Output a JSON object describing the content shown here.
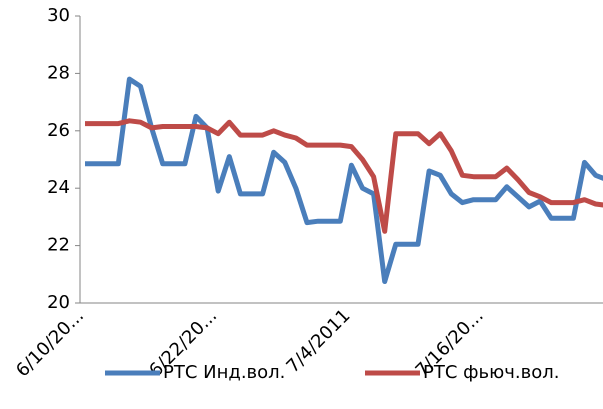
{
  "chart_data": {
    "type": "line",
    "categories": [
      "6/10/20...",
      null,
      null,
      null,
      null,
      null,
      null,
      null,
      null,
      null,
      null,
      null,
      "6/22/20...",
      null,
      null,
      null,
      null,
      null,
      null,
      null,
      null,
      null,
      null,
      null,
      "7/4/2011",
      null,
      null,
      null,
      null,
      null,
      null,
      null,
      null,
      null,
      null,
      null,
      "7/16/20...",
      null,
      null,
      null,
      null,
      null,
      null,
      null,
      null,
      null,
      null,
      null
    ],
    "series": [
      {
        "name": "РТС Инд.вол.",
        "color": "#4a7ebb",
        "values": [
          24.85,
          24.85,
          24.85,
          24.85,
          27.8,
          27.55,
          26.1,
          24.85,
          24.85,
          24.85,
          26.5,
          26.1,
          23.9,
          25.1,
          23.8,
          23.8,
          23.8,
          25.25,
          24.9,
          24.0,
          22.8,
          22.85,
          22.85,
          22.85,
          24.8,
          24.0,
          23.8,
          20.75,
          22.05,
          22.05,
          22.05,
          24.6,
          24.45,
          23.8,
          23.5,
          23.6,
          23.6,
          23.6,
          24.05,
          23.7,
          23.35,
          23.55,
          22.95,
          22.95,
          22.95,
          24.9,
          24.45,
          24.3
        ]
      },
      {
        "name": "РТС фьюч.вол.",
        "color": "#be4b48",
        "values": [
          26.25,
          26.25,
          26.25,
          26.25,
          26.35,
          26.3,
          26.1,
          26.15,
          26.15,
          26.15,
          26.15,
          26.1,
          25.9,
          26.3,
          25.85,
          25.85,
          25.85,
          26.0,
          25.85,
          25.75,
          25.5,
          25.5,
          25.5,
          25.5,
          25.45,
          25.0,
          24.4,
          22.5,
          25.9,
          25.9,
          25.9,
          25.55,
          25.9,
          25.3,
          24.45,
          24.4,
          24.4,
          24.4,
          24.7,
          24.3,
          23.85,
          23.7,
          23.5,
          23.5,
          23.5,
          23.6,
          23.45,
          23.4
        ]
      }
    ],
    "ylim": [
      20,
      30
    ],
    "yticks": [
      20,
      22,
      24,
      26,
      28,
      30
    ],
    "grid": false,
    "legend": "bottom"
  }
}
